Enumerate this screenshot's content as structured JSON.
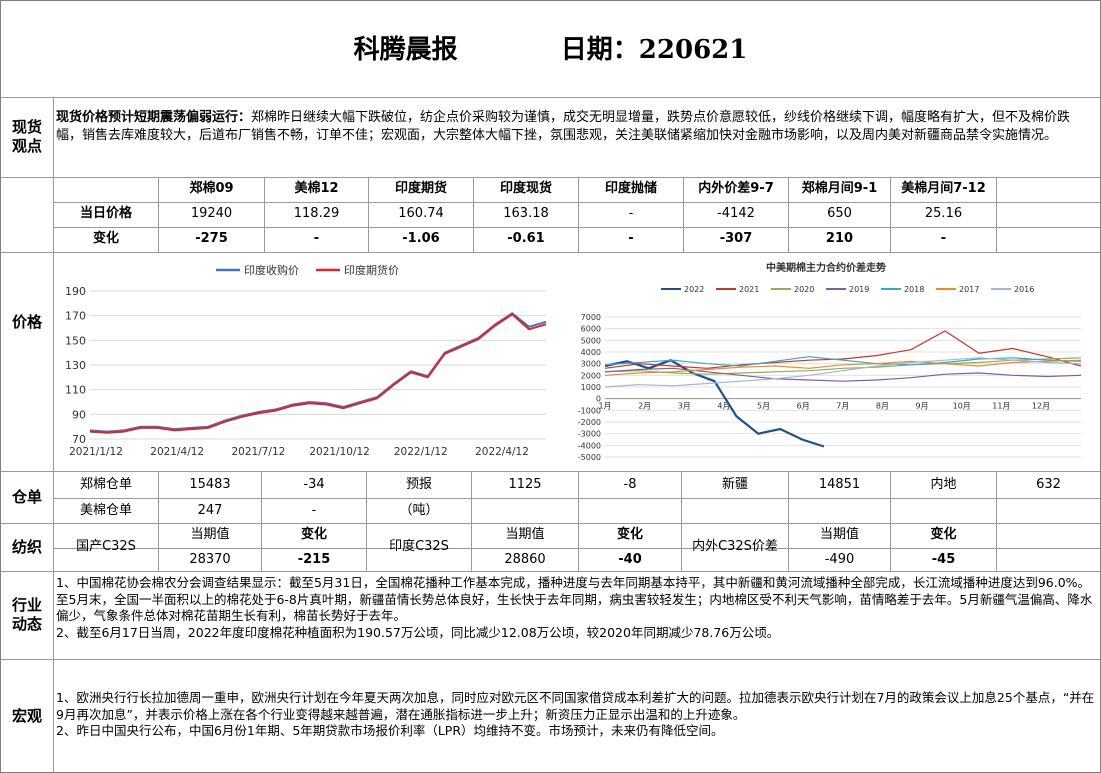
{
  "header": {
    "title": "科腾晨报",
    "date_label": "日期：",
    "date": "220621"
  },
  "sections": {
    "spot_label": "现货观点",
    "price_label": "价格",
    "warehouse_label": "仓单",
    "textile_label": "纺织",
    "industry_label": "行业动态",
    "macro_label": "宏观"
  },
  "spot": {
    "heading": "现货价格预计短期震荡偏弱运行：",
    "text": "郑棉昨日继续大幅下跌破位，纺企点价采购较为谨慎，成交无明显增量，跌势点价意愿较低，纱线价格继续下调，幅度略有扩大，但不及棉价跌幅，销售去库难度较大，后道布厂销售不畅，订单不佳；宏观面，大宗整体大幅下挫，氛围悲观，关注美联储紧缩加快对金融市场影响，以及周内美对新疆商品禁令实施情况。"
  },
  "price_table": {
    "headers": [
      "郑棉09",
      "美棉12",
      "印度期货",
      "印度现货",
      "印度抛储",
      "内外价差9-7",
      "郑棉月间9-1",
      "美棉月间7-12"
    ],
    "row1_label": "当日价格",
    "row1": [
      "19240",
      "118.29",
      "160.74",
      "163.18",
      "-",
      "-4142",
      "650",
      "25.16"
    ],
    "row2_label": "变化",
    "row2": [
      "-275",
      "-",
      "-1.06",
      "-0.61",
      "-",
      "-307",
      "210",
      "-"
    ]
  },
  "chart_left": {
    "type": "line",
    "title": "",
    "x_ticks": [
      "2021/1/12",
      "2021/4/12",
      "2021/7/12",
      "2021/10/12",
      "2022/1/12",
      "2022/4/12"
    ],
    "ylim": [
      70,
      190
    ],
    "y_ticks": [
      70,
      90,
      110,
      130,
      150,
      170,
      190
    ],
    "series": [
      {
        "name": "印度收购价",
        "color": "#4472c4",
        "values": [
          77,
          76,
          77,
          80,
          80,
          78,
          79,
          80,
          85,
          89,
          92,
          94,
          98,
          100,
          99,
          96,
          100,
          104,
          115,
          125,
          121,
          140,
          146,
          152,
          163,
          172,
          161,
          165
        ]
      },
      {
        "name": "印度期货价",
        "color": "#d9272e",
        "values": [
          76,
          75,
          76,
          79,
          79,
          77,
          78,
          79,
          84,
          88,
          91,
          93,
          97,
          99,
          98,
          95,
          99,
          103,
          114,
          124,
          120,
          139,
          145,
          151,
          162,
          171,
          159,
          163
        ]
      }
    ]
  },
  "chart_right": {
    "type": "line",
    "title": "中美期棉主力合约价差走势",
    "ylim": [
      -5000,
      7000
    ],
    "y_ticks": [
      7000,
      6000,
      5000,
      4000,
      3000,
      2000,
      1000,
      0,
      -1000,
      -2000,
      -3000,
      -4000,
      -5000
    ],
    "x_ticks": [
      "1月",
      "2月",
      "3月",
      "4月",
      "5月",
      "6月",
      "7月",
      "8月",
      "9月",
      "10月",
      "11月",
      "12月"
    ],
    "series": [
      {
        "name": "2022",
        "color": "#1f4e8c",
        "values": [
          2800,
          3200,
          2600,
          3300,
          2200,
          1500,
          -1500,
          -3000,
          -2600,
          -3500,
          -4100
        ]
      },
      {
        "name": "2021",
        "color": "#c0392b",
        "values": [
          2600,
          3000,
          2800,
          2600,
          2900,
          3100,
          3300,
          3400,
          3700,
          4200,
          5800,
          3900,
          4300,
          3600,
          2800
        ]
      },
      {
        "name": "2020",
        "color": "#8fb04b",
        "values": [
          2300,
          2400,
          2200,
          2100,
          2200,
          2300,
          2400,
          2600,
          2700,
          2900,
          3000,
          3100,
          3300,
          3400,
          3500
        ]
      },
      {
        "name": "2019",
        "color": "#7b5ea7",
        "values": [
          2300,
          2500,
          2600,
          2300,
          2000,
          1700,
          1600,
          1500,
          1600,
          1800,
          2100,
          2200,
          2000,
          1900,
          2000
        ]
      },
      {
        "name": "2018",
        "color": "#3aa6c9",
        "values": [
          2900,
          3100,
          3300,
          3000,
          2800,
          3200,
          3600,
          3300,
          3000,
          2900,
          3100,
          3400,
          3500,
          3300,
          3200
        ]
      },
      {
        "name": "2017",
        "color": "#e88a2e",
        "values": [
          2000,
          2200,
          2300,
          2500,
          2700,
          2800,
          2600,
          2900,
          3000,
          3200,
          3000,
          2800,
          3100,
          3200,
          3300
        ]
      },
      {
        "name": "2016",
        "color": "#9fb6d8",
        "values": [
          1000,
          1200,
          1100,
          1300,
          1500,
          1700,
          2000,
          2400,
          2800,
          3100,
          3300,
          3500,
          3300,
          3100,
          3000
        ]
      }
    ]
  },
  "warehouse": {
    "r1": [
      "郑棉仓单",
      "15483",
      "-34",
      "预报",
      "1125",
      "-8",
      "新疆",
      "14851",
      "内地",
      "632"
    ],
    "r2": [
      "美棉仓单",
      "247",
      "-",
      "（吨）"
    ]
  },
  "textile": {
    "cur": "当期值",
    "chg": "变化",
    "cn_label": "国产C32S",
    "cn_val": "28370",
    "cn_chg": "-215",
    "in_label": "印度C32S",
    "in_val": "28860",
    "in_chg": "-40",
    "diff_label": "内外C32S价差",
    "diff_val": "-490",
    "diff_chg": "-45"
  },
  "industry": {
    "p1": "1、中国棉花协会棉农分会调查结果显示：截至5月31日，全国棉花播种工作基本完成，播种进度与去年同期基本持平，其中新疆和黄河流域播种全部完成，长江流域播种进度达到96.0%。至5月末，全国一半面积以上的棉花处于6-8片真叶期，新疆苗情长势总体良好，生长快于去年同期，病虫害较轻发生；内地棉区受不利天气影响，苗情略差于去年。5月新疆气温偏高、降水偏少，气象条件总体对棉花苗期生长有利，棉苗长势好于去年。",
    "p2": "2、截至6月17日当周，2022年度印度棉花种植面积为190.57万公顷，同比减少12.08万公顷，较2020年同期减少78.76万公顷。"
  },
  "macro": {
    "p1": "1、欧洲央行行长拉加德周一重申，欧洲央行计划在今年夏天两次加息，同时应对欧元区不同国家借贷成本利差扩大的问题。拉加德表示欧央行计划在7月的政策会议上加息25个基点，“并在9月再次加息”，并表示价格上涨在各个行业变得越来越普遍，潜在通胀指标进一步上升；新资压力正显示出温和的上升迹象。",
    "p2": "2、昨日中国央行公布，中国6月份1年期、5年期贷款市场报价利率（LPR）均维持不变。市场预计，未来仍有降低空间。"
  }
}
